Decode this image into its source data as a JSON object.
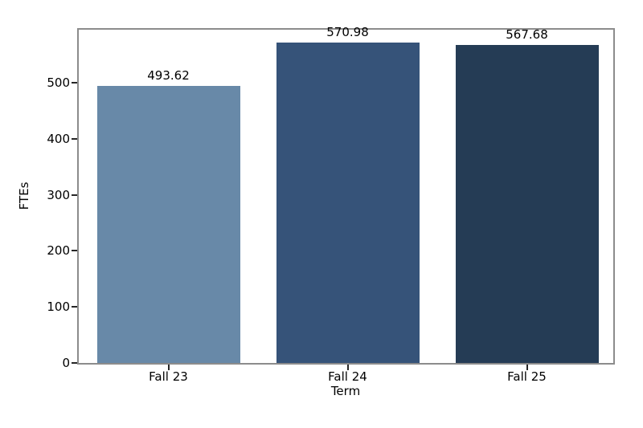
{
  "chart_data": {
    "type": "bar",
    "title": "",
    "xlabel": "Term",
    "ylabel": "FTEs",
    "categories": [
      "Fall 23",
      "Fall 24",
      "Fall 25"
    ],
    "values": [
      493.62,
      570.98,
      567.68
    ],
    "bar_value_labels": [
      "493.62",
      "570.98",
      "567.68"
    ],
    "bar_colors": [
      "#6889a8",
      "#365379",
      "#253c55"
    ],
    "ylim": [
      0,
      600
    ],
    "yticks": [
      0,
      100,
      200,
      300,
      400,
      500
    ],
    "grid": false,
    "legend": "none",
    "spine_color": "#8c8c8c",
    "tick_color": "#262626",
    "text_color": "#000000",
    "background_color": "#ffffff"
  }
}
